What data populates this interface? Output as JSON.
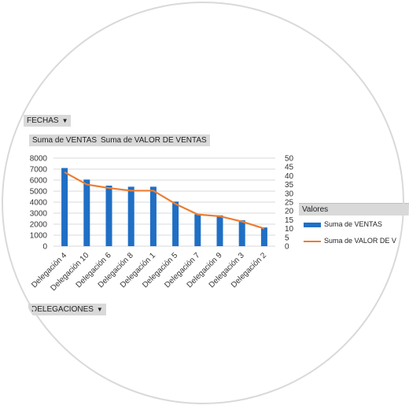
{
  "filters": {
    "fechas_label": "FECHAS",
    "delegaciones_label": "DELEGACIONES"
  },
  "value_fields": [
    "Suma de VENTAS",
    "Suma de VALOR DE VENTAS"
  ],
  "legend": {
    "title": "Valores",
    "items": [
      {
        "label": "Suma de VENTAS"
      },
      {
        "label": "Suma de VALOR DE V"
      }
    ]
  },
  "colors": {
    "bar": "#1f6fc5",
    "line": "#ed7d31",
    "grid": "#d9d9d9",
    "button": "#d9d9d9"
  },
  "icons": {
    "dropdown": "triangle-down-icon"
  },
  "chart_data": {
    "type": "bar",
    "categories": [
      "Delegación 4",
      "Delegación 10",
      "Delegación 6",
      "Delegación 8",
      "Delegación 1",
      "Delegación 5",
      "Delegación 7",
      "Delegación 9",
      "Delegación 3",
      "Delegación 2"
    ],
    "series": [
      {
        "name": "Suma de VENTAS",
        "type": "bar",
        "axis": "left",
        "values": [
          7100,
          6050,
          5500,
          5400,
          5400,
          4050,
          2900,
          2800,
          2350,
          1700
        ]
      },
      {
        "name": "Suma de VALOR DE VENTAS",
        "type": "line",
        "axis": "right",
        "values": [
          42,
          35,
          33,
          31.5,
          31.5,
          24,
          18,
          17,
          14,
          10
        ]
      }
    ],
    "y_left": {
      "min": 0,
      "max": 8000,
      "step": 1000,
      "ticks": [
        "0",
        "1000",
        "2000",
        "3000",
        "4000",
        "5000",
        "6000",
        "7000",
        "8000"
      ]
    },
    "y_right": {
      "min": 0,
      "max": 50,
      "step": 5,
      "ticks": [
        "0",
        "5",
        "10",
        "15",
        "20",
        "25",
        "30",
        "35",
        "40",
        "45",
        "50"
      ]
    },
    "grid": true,
    "legend_position": "right"
  }
}
